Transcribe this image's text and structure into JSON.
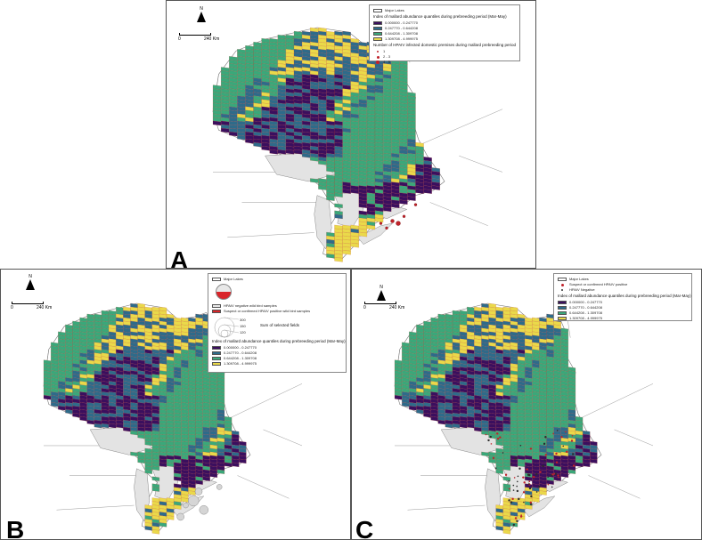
{
  "colors": {
    "q1": "#3b0f5e",
    "q2": "#2e6b8a",
    "q3": "#3aa87a",
    "q4": "#ead94a",
    "land": "#ffffff",
    "lakes": "#e3e3e3",
    "border": "#9a9a9a",
    "point_red": "#c0222a"
  },
  "panels": {
    "A": {
      "letter": "A",
      "north": "N",
      "scale_start": "0",
      "scale_end": "240 Km",
      "legend": {
        "lakes": "Major Lakes",
        "index_title": "Index of mallard abundance quantiles during prebreeding period (Mar-May)",
        "classes": [
          "0.000000 - 0.247770",
          "0.247770 - 0.644208",
          "0.644208 - 1.309708",
          "1.309708 - 4.999975"
        ],
        "premises_title": "Number of HPAIV infected domestic premises during mallard prebreeding period",
        "premises": [
          "1",
          "2 - 3",
          "4 - 5"
        ]
      }
    },
    "B": {
      "letter": "B",
      "north": "N",
      "scale_start": "0",
      "scale_end": "240 Km",
      "legend": {
        "lakes": "Major Lakes",
        "neg": "HPAIV negative wild bird samples",
        "pos": "Suspect or confirmed HPAIV positive wild bird samples",
        "sum_title": "Sum of selected fields",
        "sizes": [
          "300",
          "150",
          "120"
        ],
        "index_title": "Index of mallard abundance quantiles during prebreeding period (Mar-May)",
        "classes": [
          "0.000000 - 0.247770",
          "0.247770 - 0.644208",
          "0.644208 - 1.309708",
          "1.309708 - 4.999975"
        ]
      }
    },
    "C": {
      "letter": "C",
      "north": "N",
      "scale_start": "0",
      "scale_end": "240 Km",
      "legend": {
        "lakes": "Major Lakes",
        "pos": "Suspect or confirmed HPAIV positive",
        "neg": "HPAIV Negative",
        "index_title": "Index of mallard abundance quantiles during prebreeding period (Mar-May)",
        "classes": [
          "0.000000 - 0.247770",
          "0.247770 - 0.644208",
          "0.644208 - 1.309708",
          "1.309708 - 4.999975"
        ]
      }
    }
  }
}
